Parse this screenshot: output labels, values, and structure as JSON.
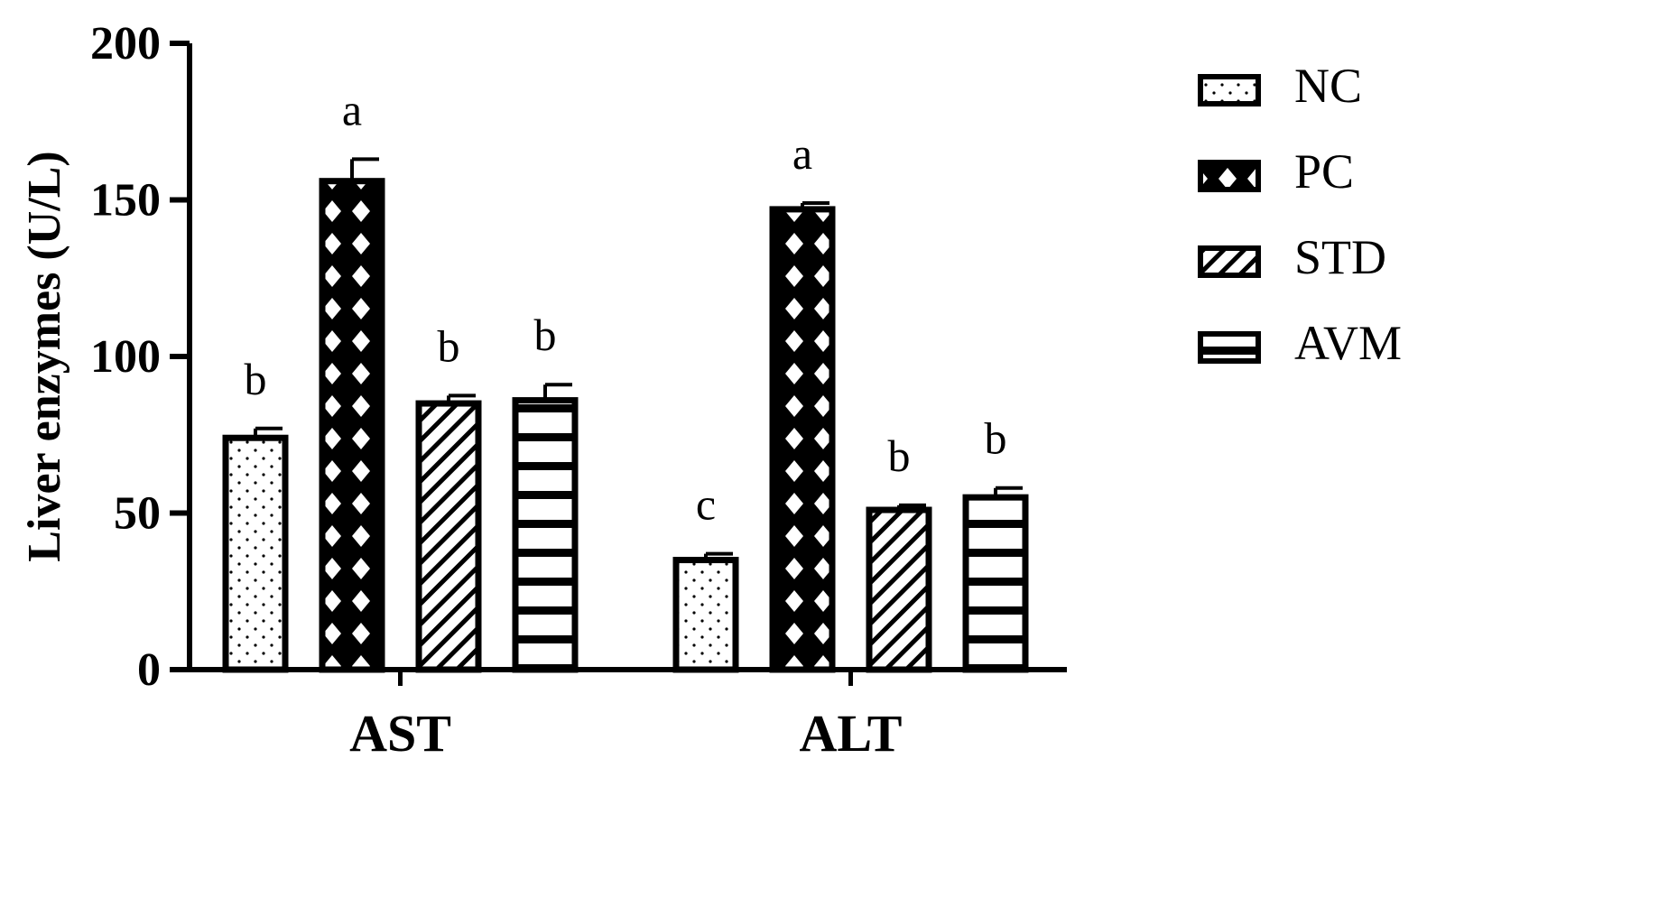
{
  "chart_data": {
    "type": "bar",
    "title": "",
    "xlabel": "",
    "ylabel": "Liver enzymes (U/L)",
    "ylim": [
      0,
      200
    ],
    "yticks": [
      0,
      50,
      100,
      150,
      200
    ],
    "categories": [
      "AST",
      "ALT"
    ],
    "series": [
      {
        "name": "NC",
        "pattern": "dots",
        "values": [
          74,
          35
        ],
        "errors": [
          3,
          2
        ],
        "significance": [
          "b",
          "c"
        ]
      },
      {
        "name": "PC",
        "pattern": "diamonds",
        "values": [
          156,
          147
        ],
        "errors": [
          7,
          2
        ],
        "significance": [
          "a",
          "a"
        ]
      },
      {
        "name": "STD",
        "pattern": "diagonal",
        "values": [
          85,
          51
        ],
        "errors": [
          2.5,
          1.5
        ],
        "significance": [
          "b",
          "b"
        ]
      },
      {
        "name": "AVM",
        "pattern": "horizontal",
        "values": [
          86,
          55
        ],
        "errors": [
          5,
          3
        ],
        "significance": [
          "b",
          "b"
        ]
      }
    ],
    "grid": false,
    "legend_position": "right",
    "colors": {
      "stroke": "#000000",
      "background": "#ffffff"
    }
  }
}
